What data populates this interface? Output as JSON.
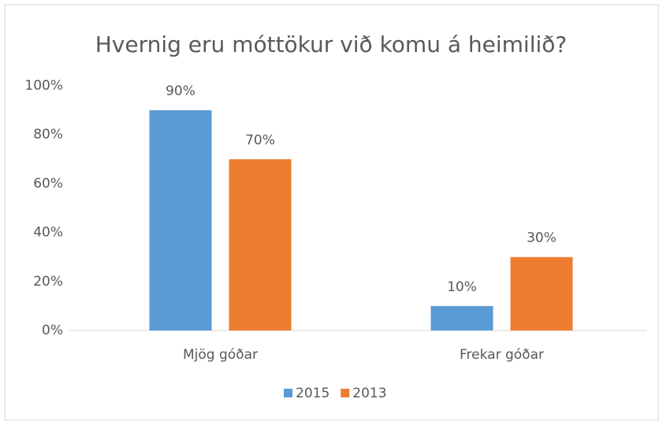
{
  "chart_data": {
    "type": "bar",
    "title": "Hvernig eru móttökur við komu á heimilið?",
    "categories": [
      "Mjög góðar",
      "Frekar góðar"
    ],
    "series": [
      {
        "name": "2015",
        "color": "#5b9bd5",
        "values": [
          90,
          10
        ],
        "value_labels": [
          "90%",
          "10%"
        ]
      },
      {
        "name": "2013",
        "color": "#ed7d31",
        "values": [
          70,
          30
        ],
        "value_labels": [
          "70%",
          "30%"
        ]
      }
    ],
    "ylim": [
      0,
      100
    ],
    "yticks": [
      {
        "value": 0,
        "label": "0%"
      },
      {
        "value": 20,
        "label": "20%"
      },
      {
        "value": 40,
        "label": "40%"
      },
      {
        "value": 60,
        "label": "60%"
      },
      {
        "value": 80,
        "label": "80%"
      },
      {
        "value": 100,
        "label": "100%"
      }
    ],
    "grid": false,
    "legend": "bottom"
  }
}
